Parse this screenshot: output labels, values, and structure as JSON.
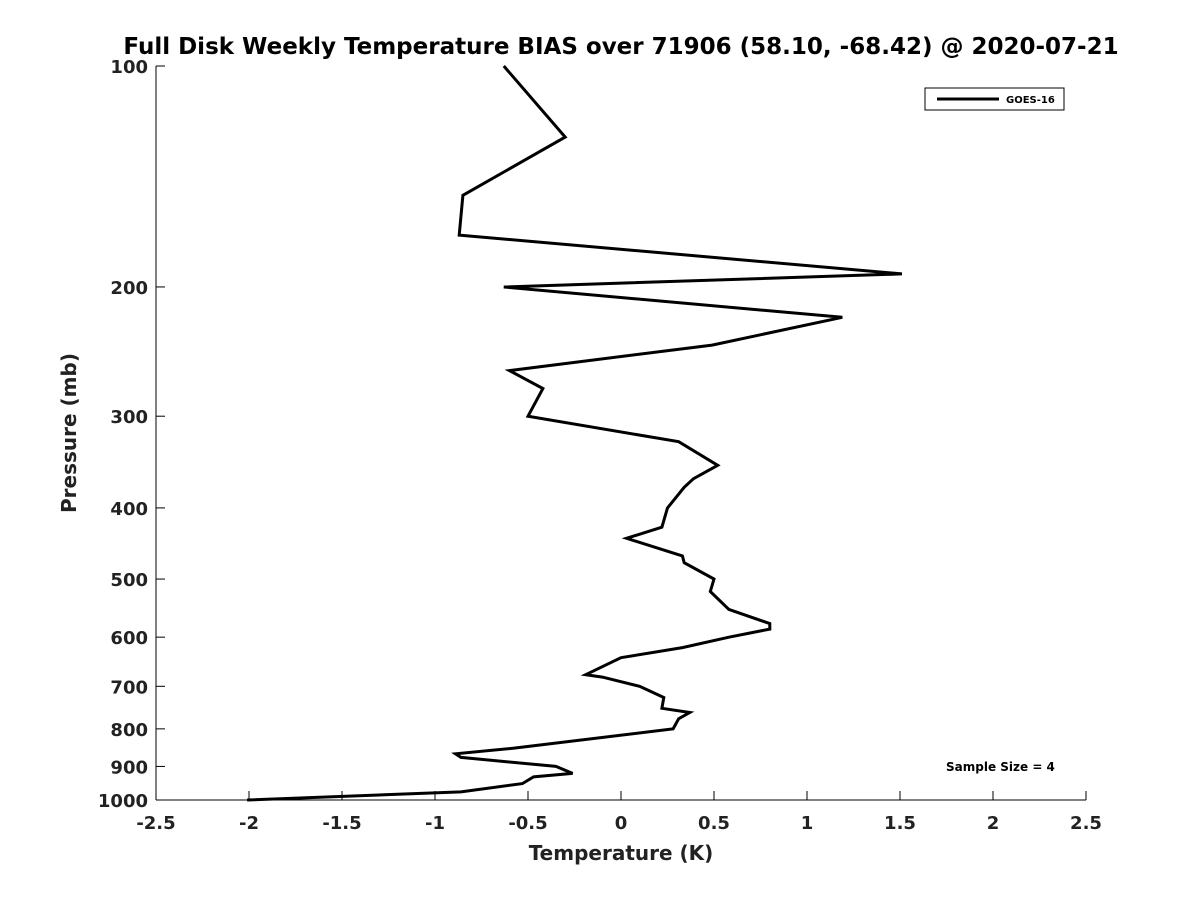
{
  "chart_data": {
    "type": "line",
    "title": "Full Disk Weekly Temperature BIAS over 71906 (58.10, -68.42) @ 2020-07-21",
    "xlabel": "Temperature (K)",
    "ylabel": "Pressure (mb)",
    "xlim": [
      -2.5,
      2.5
    ],
    "ylim": [
      100,
      1000
    ],
    "y_scale": "log",
    "y_reversed": true,
    "x_ticks": [
      -2.5,
      -2,
      -1.5,
      -1,
      -0.5,
      0,
      0.5,
      1,
      1.5,
      2,
      2.5
    ],
    "x_tick_labels": [
      "-2.5",
      "-2",
      "-1.5",
      "-1",
      "-0.5",
      "0",
      "0.5",
      "1",
      "1.5",
      "2",
      "2.5"
    ],
    "y_ticks": [
      100,
      200,
      300,
      400,
      500,
      600,
      700,
      800,
      900,
      1000
    ],
    "y_tick_labels": [
      "100",
      "200",
      "300",
      "400",
      "500",
      "600",
      "700",
      "800",
      "900",
      "1000"
    ],
    "grid": false,
    "legend_position": "top-right",
    "annotation": "Sample Size = 4",
    "series": [
      {
        "name": "GOES-16",
        "color": "#000000",
        "points": [
          [
            -0.63,
            100
          ],
          [
            -0.3,
            125
          ],
          [
            -0.85,
            150
          ],
          [
            -0.87,
            170
          ],
          [
            1.51,
            192
          ],
          [
            -0.63,
            200
          ],
          [
            1.19,
            220
          ],
          [
            0.49,
            240
          ],
          [
            -0.6,
            260
          ],
          [
            -0.42,
            275
          ],
          [
            -0.5,
            300
          ],
          [
            0.31,
            325
          ],
          [
            0.52,
            350
          ],
          [
            0.39,
            365
          ],
          [
            0.34,
            375
          ],
          [
            0.25,
            400
          ],
          [
            0.22,
            425
          ],
          [
            0.03,
            440
          ],
          [
            0.33,
            465
          ],
          [
            0.34,
            475
          ],
          [
            0.5,
            500
          ],
          [
            0.48,
            520
          ],
          [
            0.58,
            550
          ],
          [
            0.8,
            575
          ],
          [
            0.8,
            585
          ],
          [
            0.58,
            600
          ],
          [
            0.33,
            620
          ],
          [
            0.0,
            640
          ],
          [
            -0.19,
            675
          ],
          [
            -0.1,
            680
          ],
          [
            0.1,
            700
          ],
          [
            0.23,
            725
          ],
          [
            0.22,
            750
          ],
          [
            0.37,
            760
          ],
          [
            0.31,
            775
          ],
          [
            0.28,
            800
          ],
          [
            -0.58,
            850
          ],
          [
            -0.89,
            865
          ],
          [
            -0.86,
            875
          ],
          [
            -0.35,
            900
          ],
          [
            -0.26,
            920
          ],
          [
            -0.47,
            930
          ],
          [
            -0.53,
            950
          ],
          [
            -0.86,
            975
          ],
          [
            -2.01,
            1000
          ]
        ]
      }
    ]
  }
}
